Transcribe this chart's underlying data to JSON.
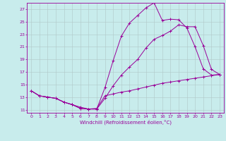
{
  "xlabel": "Windchill (Refroidissement éolien,°C)",
  "bg_color": "#c8ecec",
  "line_color": "#990099",
  "grid_color": "#b0c8c8",
  "xlim": [
    -0.5,
    23.5
  ],
  "ylim": [
    10.5,
    28.0
  ],
  "yticks": [
    11,
    13,
    15,
    17,
    19,
    21,
    23,
    25,
    27
  ],
  "xticks": [
    0,
    1,
    2,
    3,
    4,
    5,
    6,
    7,
    8,
    9,
    10,
    11,
    12,
    13,
    14,
    15,
    16,
    17,
    18,
    19,
    20,
    21,
    22,
    23
  ],
  "curve1_x": [
    0,
    1,
    2,
    3,
    4,
    5,
    6,
    7,
    8,
    9,
    10,
    11,
    12,
    13,
    14,
    15,
    16,
    17,
    18,
    19,
    20,
    21,
    22,
    23
  ],
  "curve1_y": [
    14.0,
    13.2,
    13.0,
    12.8,
    12.2,
    11.8,
    11.2,
    11.1,
    11.1,
    14.5,
    18.8,
    22.7,
    24.8,
    26.0,
    27.2,
    28.0,
    25.2,
    25.4,
    25.3,
    24.0,
    21.0,
    17.5,
    16.5,
    16.6
  ],
  "curve2_x": [
    0,
    1,
    2,
    3,
    4,
    5,
    6,
    7,
    8,
    9,
    10,
    11,
    12,
    13,
    14,
    15,
    16,
    17,
    18,
    19,
    20,
    21,
    22,
    23
  ],
  "curve2_y": [
    14.0,
    13.2,
    13.0,
    12.8,
    12.2,
    11.8,
    11.2,
    11.1,
    11.1,
    12.8,
    14.8,
    16.5,
    17.8,
    19.0,
    20.8,
    22.2,
    22.8,
    23.5,
    24.5,
    24.2,
    24.2,
    21.2,
    17.4,
    16.6
  ],
  "curve3_x": [
    0,
    1,
    2,
    3,
    4,
    5,
    6,
    7,
    8,
    9,
    10,
    11,
    12,
    13,
    14,
    15,
    16,
    17,
    18,
    19,
    20,
    21,
    22,
    23
  ],
  "curve3_y": [
    14.0,
    13.2,
    13.0,
    12.8,
    12.2,
    11.8,
    11.4,
    11.1,
    11.2,
    13.2,
    13.5,
    13.8,
    14.0,
    14.3,
    14.6,
    14.9,
    15.2,
    15.4,
    15.6,
    15.8,
    16.0,
    16.2,
    16.4,
    16.6
  ]
}
